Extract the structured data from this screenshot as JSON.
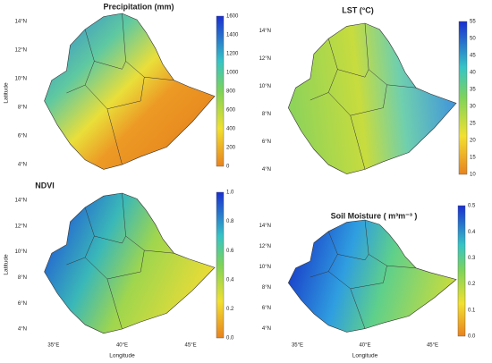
{
  "panels": [
    {
      "title": "Precipitation (mm)",
      "colorbar_ticks": [
        "0",
        "200",
        "400",
        "600",
        "800",
        "1000",
        "1200",
        "1400",
        "1600"
      ],
      "lat_ticks": [
        "4°N",
        "6°N",
        "8°N",
        "10°N",
        "12°N",
        "14°N"
      ],
      "y_label": "Latitude"
    },
    {
      "title": "LST (°C)",
      "colorbar_ticks": [
        "10",
        "15",
        "20",
        "25",
        "30",
        "35",
        "40",
        "45",
        "50",
        "55"
      ],
      "lat_ticks": [
        "4°N",
        "6°N",
        "8°N",
        "10°N",
        "12°N",
        "14°N"
      ]
    },
    {
      "title": "NDVI",
      "colorbar_ticks": [
        "0.0",
        "0.2",
        "0.4",
        "0.6",
        "0.8",
        "1.0"
      ],
      "lat_ticks": [
        "4°N",
        "6°N",
        "8°N",
        "10°N",
        "12°N",
        "14°N"
      ],
      "lon_ticks": [
        "35°E",
        "40°E",
        "45°E"
      ],
      "y_label": "Latitude",
      "x_label": "Longitude"
    },
    {
      "title": "Soil Moisture ( m³m⁻³ )",
      "colorbar_ticks": [
        "0.0",
        "0.1",
        "0.2",
        "0.3",
        "0.4",
        "0.5"
      ],
      "lat_ticks": [
        "4°N",
        "6°N",
        "8°N",
        "10°N",
        "12°N",
        "14°N"
      ],
      "lon_ticks": [
        "35°E",
        "40°E",
        "45°E"
      ],
      "x_label": "Longitude"
    }
  ]
}
